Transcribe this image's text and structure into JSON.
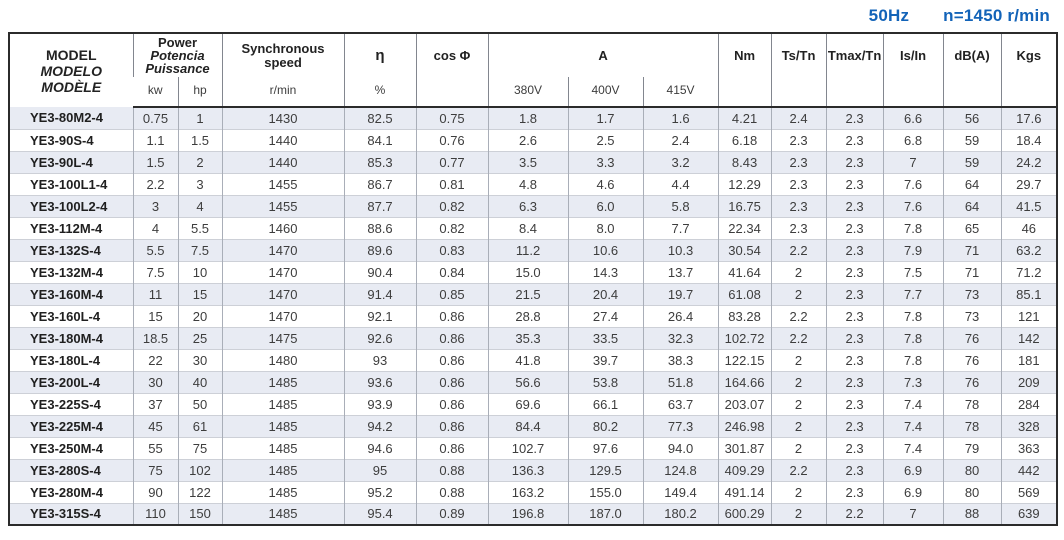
{
  "page_header": {
    "frequency": "50Hz",
    "speed_note": "n=1450 r/min",
    "accent_color": "#1263b8"
  },
  "colors": {
    "stripe_row": "#e8ebf3",
    "outer_border": "#2b2b2b",
    "rmin_navy": "#39455e"
  },
  "table": {
    "header": {
      "model_lines": [
        "MODEL",
        "MODELO",
        "MODÈLE"
      ],
      "power_lines": [
        "Power",
        "Potencia",
        "Puissance"
      ],
      "power_sub": [
        "kw",
        "hp"
      ],
      "sync_lines": [
        "Synchronous",
        "speed"
      ],
      "sync_sub": "r/min",
      "eta_label": "η",
      "eta_sub": "%",
      "cos_label": "cos Φ",
      "amps_label": "A",
      "amps_sub": [
        "380V",
        "400V",
        "415V"
      ],
      "simple": [
        "Nm",
        "Ts/Tn",
        "Tmax/Tn",
        "Is/In",
        "dB(A)",
        "Kgs"
      ]
    },
    "rows": [
      [
        "YE3-80M2-4",
        "0.75",
        "1",
        "1430",
        "82.5",
        "0.75",
        "1.8",
        "1.7",
        "1.6",
        "4.21",
        "2.4",
        "2.3",
        "6.6",
        "56",
        "17.6"
      ],
      [
        "YE3-90S-4",
        "1.1",
        "1.5",
        "1440",
        "84.1",
        "0.76",
        "2.6",
        "2.5",
        "2.4",
        "6.18",
        "2.3",
        "2.3",
        "6.8",
        "59",
        "18.4"
      ],
      [
        "YE3-90L-4",
        "1.5",
        "2",
        "1440",
        "85.3",
        "0.77",
        "3.5",
        "3.3",
        "3.2",
        "8.43",
        "2.3",
        "2.3",
        "7",
        "59",
        "24.2"
      ],
      [
        "YE3-100L1-4",
        "2.2",
        "3",
        "1455",
        "86.7",
        "0.81",
        "4.8",
        "4.6",
        "4.4",
        "12.29",
        "2.3",
        "2.3",
        "7.6",
        "64",
        "29.7"
      ],
      [
        "YE3-100L2-4",
        "3",
        "4",
        "1455",
        "87.7",
        "0.82",
        "6.3",
        "6.0",
        "5.8",
        "16.75",
        "2.3",
        "2.3",
        "7.6",
        "64",
        "41.5"
      ],
      [
        "YE3-112M-4",
        "4",
        "5.5",
        "1460",
        "88.6",
        "0.82",
        "8.4",
        "8.0",
        "7.7",
        "22.34",
        "2.3",
        "2.3",
        "7.8",
        "65",
        "46"
      ],
      [
        "YE3-132S-4",
        "5.5",
        "7.5",
        "1470",
        "89.6",
        "0.83",
        "11.2",
        "10.6",
        "10.3",
        "30.54",
        "2.2",
        "2.3",
        "7.9",
        "71",
        "63.2"
      ],
      [
        "YE3-132M-4",
        "7.5",
        "10",
        "1470",
        "90.4",
        "0.84",
        "15.0",
        "14.3",
        "13.7",
        "41.64",
        "2",
        "2.3",
        "7.5",
        "71",
        "71.2"
      ],
      [
        "YE3-160M-4",
        "11",
        "15",
        "1470",
        "91.4",
        "0.85",
        "21.5",
        "20.4",
        "19.7",
        "61.08",
        "2",
        "2.3",
        "7.7",
        "73",
        "85.1"
      ],
      [
        "YE3-160L-4",
        "15",
        "20",
        "1470",
        "92.1",
        "0.86",
        "28.8",
        "27.4",
        "26.4",
        "83.28",
        "2.2",
        "2.3",
        "7.8",
        "73",
        "121"
      ],
      [
        "YE3-180M-4",
        "18.5",
        "25",
        "1475",
        "92.6",
        "0.86",
        "35.3",
        "33.5",
        "32.3",
        "102.72",
        "2.2",
        "2.3",
        "7.8",
        "76",
        "142"
      ],
      [
        "YE3-180L-4",
        "22",
        "30",
        "1480",
        "93",
        "0.86",
        "41.8",
        "39.7",
        "38.3",
        "122.15",
        "2",
        "2.3",
        "7.8",
        "76",
        "181"
      ],
      [
        "YE3-200L-4",
        "30",
        "40",
        "1485",
        "93.6",
        "0.86",
        "56.6",
        "53.8",
        "51.8",
        "164.66",
        "2",
        "2.3",
        "7.3",
        "76",
        "209"
      ],
      [
        "YE3-225S-4",
        "37",
        "50",
        "1485",
        "93.9",
        "0.86",
        "69.6",
        "66.1",
        "63.7",
        "203.07",
        "2",
        "2.3",
        "7.4",
        "78",
        "284"
      ],
      [
        "YE3-225M-4",
        "45",
        "61",
        "1485",
        "94.2",
        "0.86",
        "84.4",
        "80.2",
        "77.3",
        "246.98",
        "2",
        "2.3",
        "7.4",
        "78",
        "328"
      ],
      [
        "YE3-250M-4",
        "55",
        "75",
        "1485",
        "94.6",
        "0.86",
        "102.7",
        "97.6",
        "94.0",
        "301.87",
        "2",
        "2.3",
        "7.4",
        "79",
        "363"
      ],
      [
        "YE3-280S-4",
        "75",
        "102",
        "1485",
        "95",
        "0.88",
        "136.3",
        "129.5",
        "124.8",
        "409.29",
        "2.2",
        "2.3",
        "6.9",
        "80",
        "442"
      ],
      [
        "YE3-280M-4",
        "90",
        "122",
        "1485",
        "95.2",
        "0.88",
        "163.2",
        "155.0",
        "149.4",
        "491.14",
        "2",
        "2.3",
        "6.9",
        "80",
        "569"
      ],
      [
        "YE3-315S-4",
        "110",
        "150",
        "1485",
        "95.4",
        "0.89",
        "196.8",
        "187.0",
        "180.2",
        "600.29",
        "2",
        "2.2",
        "7",
        "88",
        "639"
      ]
    ]
  }
}
